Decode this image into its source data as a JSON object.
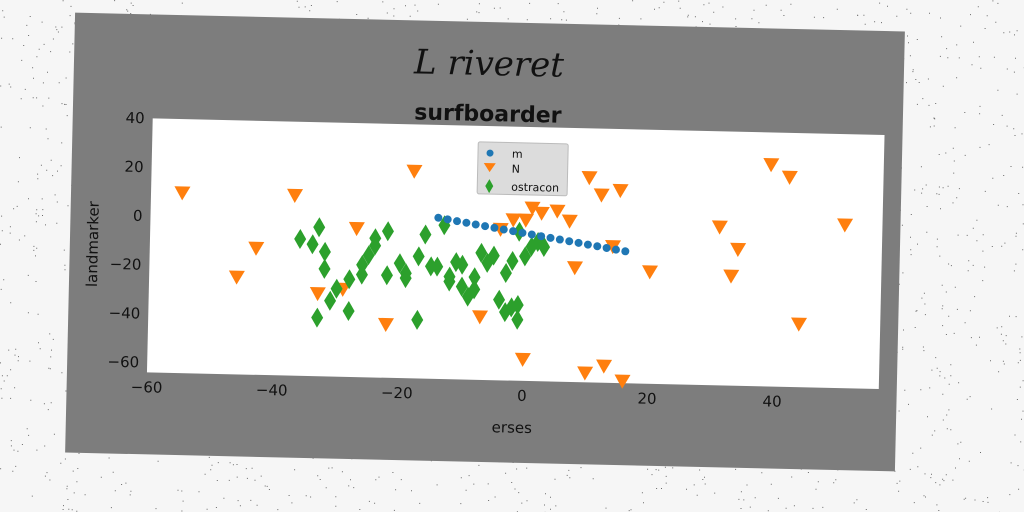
{
  "figure": {
    "title": "L riveret"
  },
  "chart_data": {
    "type": "scatter",
    "title": "surfboarder",
    "xlabel": "erses",
    "ylabel": "landmarker",
    "xlim": [
      -60,
      57
    ],
    "ylim": [
      -64,
      40
    ],
    "xticks": [
      -60,
      -40,
      -20,
      0,
      20,
      40
    ],
    "yticks": [
      -60,
      -40,
      -20,
      0,
      20,
      40
    ],
    "grid": false,
    "legend_position": "top-center",
    "series": [
      {
        "name": "m",
        "marker": "circle",
        "color": "#1f77b4",
        "x": [
          -14,
          -12.5,
          -11,
          -9.5,
          -8,
          -6.5,
          -5,
          -3.5,
          -2,
          -0.5,
          1,
          2.5,
          4,
          5.5,
          7,
          8.5,
          10,
          11.5,
          13,
          14.5,
          16
        ],
        "y": [
          2,
          1.4,
          0.8,
          0.2,
          -0.4,
          -1,
          -1.6,
          -2.2,
          -2.8,
          -3.4,
          -4,
          -4.6,
          -5.2,
          -5.8,
          -6.4,
          -7,
          -7.6,
          -8.2,
          -8.8,
          -9.4,
          -10
        ]
      },
      {
        "name": "N",
        "marker": "triangle-down",
        "color": "#ff7f0e",
        "x": [
          -55,
          -18,
          -37,
          -43,
          -46,
          -27,
          -33,
          -29,
          -22,
          -7,
          -4,
          -2,
          0,
          1,
          2.5,
          5,
          7,
          10,
          12,
          15,
          8,
          14,
          20,
          31,
          34,
          33,
          42,
          51,
          44,
          39,
          10,
          0,
          13,
          16
        ],
        "y": [
          10,
          21,
          10,
          -12,
          -24,
          -3,
          -30,
          -28,
          -42,
          -38,
          -2,
          2,
          2,
          7,
          5,
          6,
          2,
          20,
          13,
          15,
          -17,
          -8,
          -18,
          1,
          -8,
          -19,
          22,
          3,
          -38,
          27,
          -60,
          -55,
          -57,
          -63
        ]
      },
      {
        "name": "ostracon",
        "marker": "diamond",
        "color": "#2ca02c",
        "x": [
          -36,
          -33,
          -34,
          -32,
          -32,
          -28,
          -30,
          -31,
          -26,
          -25,
          -24,
          -24,
          -26,
          -22,
          -22,
          -20,
          -19,
          -19,
          -17,
          -16,
          -17,
          -15,
          -13,
          -12,
          -11,
          -10,
          -10,
          -8,
          -7,
          -6,
          -5,
          -4,
          -3,
          -3,
          -2,
          -1,
          0,
          1,
          2,
          3,
          -1,
          -12,
          -8,
          -2,
          -1,
          -9,
          -14,
          -28,
          -33
        ],
        "y": [
          -8,
          -3,
          -10,
          -13,
          -20,
          -24,
          -28,
          -33,
          -18,
          -14,
          -10,
          -7,
          -22,
          -22,
          -4,
          -17,
          -21,
          -23,
          -14,
          -5,
          -40,
          -18,
          -1,
          -22,
          -16,
          -17,
          -26,
          -22,
          -12,
          -16,
          -13,
          -31,
          -20,
          -36,
          -15,
          -3,
          -13,
          -9,
          -7,
          -9,
          -33,
          -24,
          -27,
          -34,
          -39,
          -30,
          -18,
          -37,
          -40
        ]
      }
    ]
  }
}
